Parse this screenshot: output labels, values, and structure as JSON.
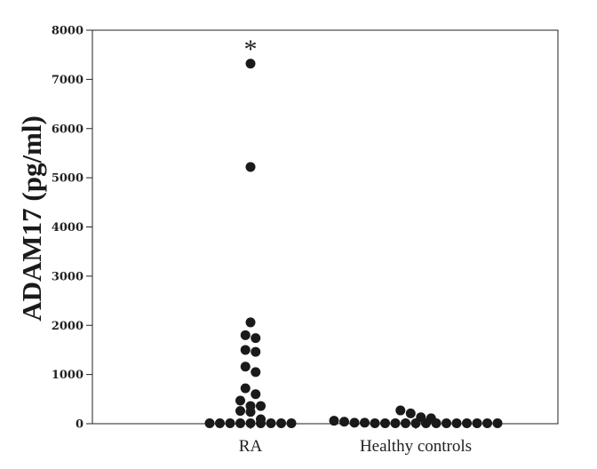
{
  "chart_data": {
    "type": "scatter",
    "subtype": "dot-strip",
    "title": "",
    "xlabel": "",
    "ylabel": "ADAM17 (pg/ml)",
    "ylim": [
      0,
      8000
    ],
    "yticks": [
      0,
      1000,
      2000,
      3000,
      4000,
      5000,
      6000,
      7000,
      8000
    ],
    "yticklabels": [
      "0",
      "1000",
      "2000",
      "3000",
      "4000",
      "5000",
      "6000",
      "7000",
      "8000"
    ],
    "categories": [
      "RA",
      "Healthy controls"
    ],
    "grid": false,
    "legend": "none",
    "marker_color": "#1a1a1a",
    "series": [
      {
        "category": "RA",
        "values": [
          7320,
          5220,
          2060,
          1800,
          1740,
          1500,
          1460,
          1160,
          1050,
          720,
          600,
          470,
          360,
          360,
          260,
          240,
          90,
          10,
          10,
          10,
          10,
          10,
          10,
          10,
          10,
          10
        ]
      },
      {
        "category": "Healthy controls",
        "values": [
          270,
          210,
          130,
          110,
          60,
          40,
          20,
          20,
          10,
          10,
          10,
          10,
          10,
          10,
          10,
          10,
          10,
          10,
          10,
          10,
          10
        ]
      }
    ],
    "annotations": [
      {
        "text": "*",
        "category": "RA",
        "y": 7800
      }
    ]
  }
}
